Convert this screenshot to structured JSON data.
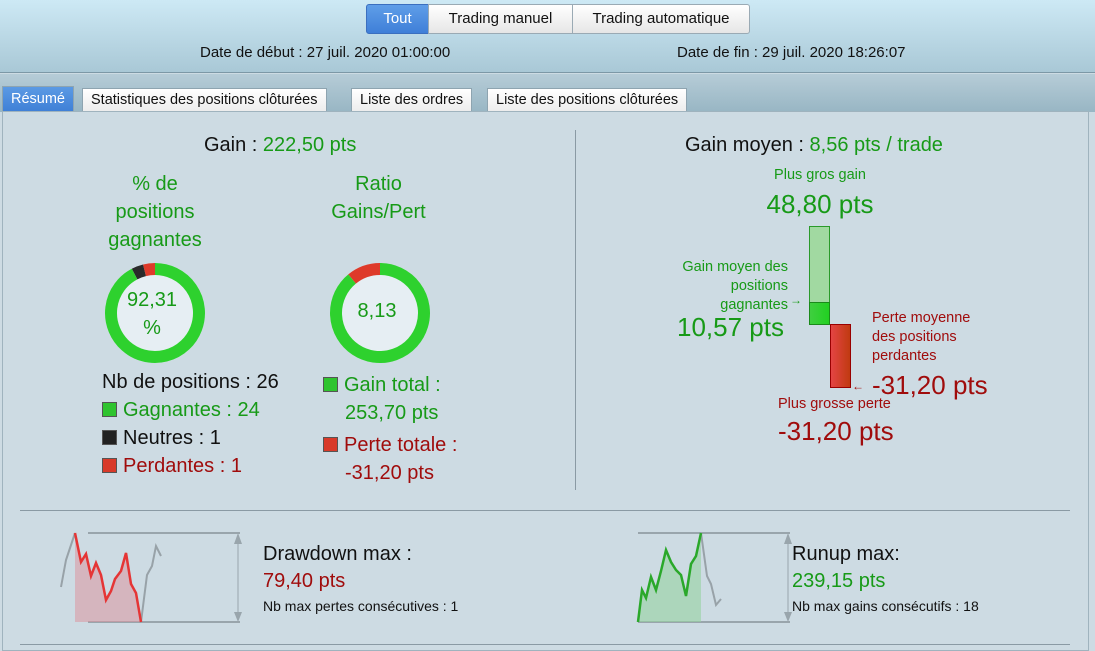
{
  "filter": {
    "buttons": [
      {
        "label": "Tout",
        "active": true
      },
      {
        "label": "Trading manuel",
        "active": false
      },
      {
        "label": "Trading automatique",
        "active": false
      }
    ]
  },
  "dates": {
    "start": "Date de début : 27 juil. 2020 01:00:00",
    "end": "Date de fin : 29 juil. 2020 18:26:07"
  },
  "tabs": [
    {
      "label": "Résumé",
      "active": true
    },
    {
      "label": "Statistiques des positions clôturées"
    },
    {
      "label": "Liste des ordres"
    },
    {
      "label": "Liste des positions clôturées"
    }
  ],
  "colors": {
    "gain": "#179a17",
    "loss": "#a00c0c",
    "neutral": "#222222",
    "accent": "#3f7fd8"
  },
  "summary": {
    "gain_label": "Gain :",
    "gain_value": "222,50 pts",
    "win_pct_title_1": "% de",
    "win_pct_title_2": "positions",
    "win_pct_title_3": "gagnantes",
    "win_pct_value_1": "92,31",
    "win_pct_value_2": "%",
    "ratio_title_1": "Ratio",
    "ratio_title_2": "Gains/Pert",
    "ratio_value": "8,13",
    "nb_positions": "Nb de positions : 26",
    "winners": "Gagnantes : 24",
    "neutrals": "Neutres : 1",
    "losers": "Perdantes : 1",
    "total_gain_label": "Gain total :",
    "total_gain_value": "253,70 pts",
    "total_loss_label": "Perte totale :",
    "total_loss_value": "-31,20 pts",
    "donut_positions": {
      "winners": 24,
      "neutrals": 1,
      "losers": 1
    },
    "donut_ratio": {
      "gain": 253.7,
      "loss": 31.2
    }
  },
  "average": {
    "label": "Gain moyen :",
    "value": "8,56 pts / trade",
    "biggest_gain_label": "Plus gros gain",
    "biggest_gain_value": "48,80 pts",
    "avg_win_label_1": "Gain moyen des",
    "avg_win_label_2": "positions",
    "avg_win_label_3": "gagnantes",
    "avg_win_value": "10,57 pts",
    "avg_loss_label_1": "Perte moyenne",
    "avg_loss_label_2": "des positions",
    "avg_loss_label_3": "perdantes",
    "avg_loss_value": "-31,20 pts",
    "biggest_loss_label": "Plus grosse perte",
    "biggest_loss_value": "-31,20 pts"
  },
  "drawdown": {
    "label": "Drawdown max :",
    "value": "79,40 pts",
    "sub": "Nb max pertes consécutives : 1"
  },
  "runup": {
    "label": "Runup max:",
    "value": "239,15 pts",
    "sub": "Nb max gains consécutifs : 18"
  }
}
